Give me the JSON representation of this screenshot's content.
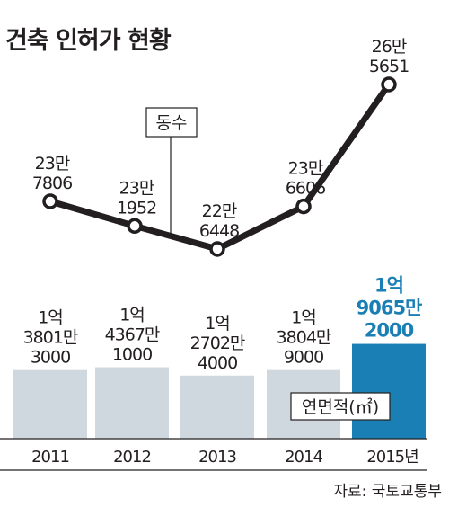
{
  "chart_data": {
    "type": "bar",
    "title": "건축 인허가 현황",
    "source": "자료: 국토교통부",
    "categories": [
      "2011",
      "2012",
      "2013",
      "2014",
      "2015년"
    ],
    "highlight_index": 4,
    "highlight_color": "#1a7fb5",
    "bar_color": "#cfd8df",
    "line_color": "#231f20",
    "bar_series": {
      "name": "연면적(㎡)",
      "values": [
        138013000,
        143671000,
        127024000,
        138049000,
        190652000
      ],
      "labels": [
        [
          "1억",
          "3801만",
          "3000"
        ],
        [
          "1억",
          "4367만",
          "1000"
        ],
        [
          "1억",
          "2702만",
          "4000"
        ],
        [
          "1억",
          "3804만",
          "9000"
        ],
        [
          "1억",
          "9065만",
          "2000"
        ]
      ]
    },
    "line_series": {
      "name": "동수",
      "values": [
        237806,
        231952,
        226448,
        236606,
        265651
      ],
      "labels": [
        [
          "23만",
          "7806"
        ],
        [
          "23만",
          "1952"
        ],
        [
          "22만",
          "6448"
        ],
        [
          "23만",
          "6606"
        ],
        [
          "26만",
          "5651"
        ]
      ]
    }
  }
}
